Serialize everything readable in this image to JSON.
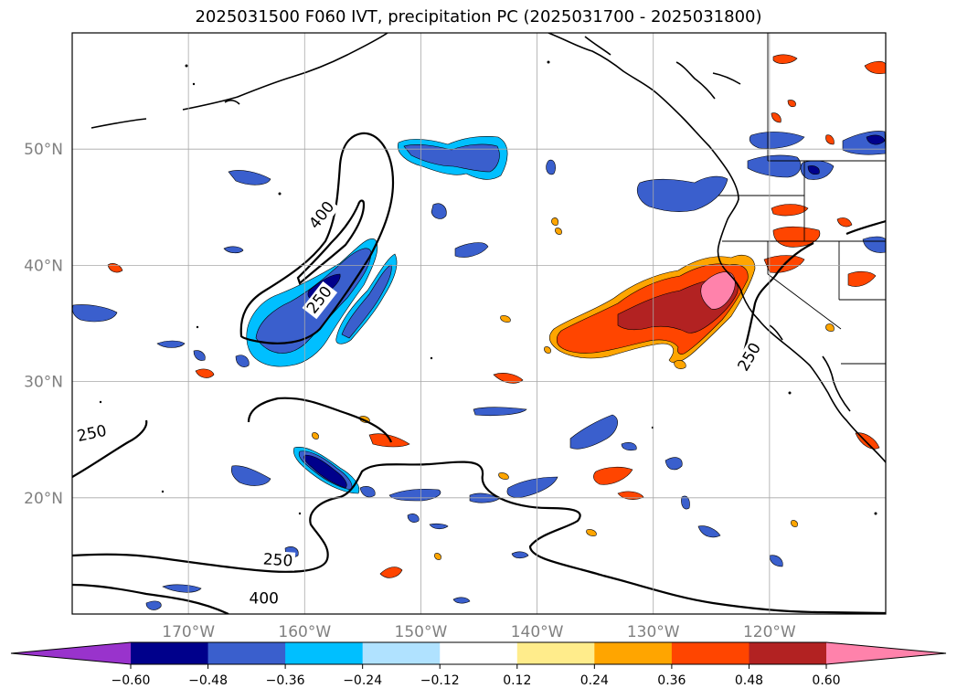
{
  "title": "2025031500 F060 IVT, precipitation PC (2025031700 - 2025031800)",
  "map": {
    "lon_range": [
      -180,
      -110
    ],
    "lat_range": [
      10,
      60
    ],
    "lat_ticks": [
      {
        "value": 50,
        "label": "50°N"
      },
      {
        "value": 40,
        "label": "40°N"
      },
      {
        "value": 30,
        "label": "30°N"
      },
      {
        "value": 20,
        "label": "20°N"
      }
    ],
    "lon_ticks": [
      {
        "value": -170,
        "label": "170°W"
      },
      {
        "value": -160,
        "label": "160°W"
      },
      {
        "value": -150,
        "label": "150°W"
      },
      {
        "value": -140,
        "label": "140°W"
      },
      {
        "value": -130,
        "label": "130°W"
      },
      {
        "value": -120,
        "label": "120°W"
      }
    ],
    "grid": true,
    "contour_labels": [
      {
        "text": "400",
        "lon": -158.5,
        "lat": 44.3,
        "rotate": -52
      },
      {
        "text": "250",
        "lon": -158.7,
        "lat": 37.0,
        "rotate": -52
      },
      {
        "text": "250",
        "lon": -178.3,
        "lat": 25.5,
        "rotate": -12
      },
      {
        "text": "250",
        "lon": -162.3,
        "lat": 14.6,
        "rotate": 4
      },
      {
        "text": "400",
        "lon": -163.5,
        "lat": 11.3,
        "rotate": 0
      },
      {
        "text": "250",
        "lon": -121.7,
        "lat": 32.1,
        "rotate": -60
      }
    ]
  },
  "colorbar": {
    "colors": [
      "#9933cc",
      "#00008b",
      "#3a5fcd",
      "#00bfff",
      "#b0e2ff",
      "#ffffff",
      "#ffec8b",
      "#ffa500",
      "#ff4500",
      "#b22222",
      "#ff82ab"
    ],
    "labels": [
      "−0.60",
      "−0.48",
      "−0.36",
      "−0.24",
      "−0.12",
      "0.12",
      "0.24",
      "0.36",
      "0.48",
      "0.60"
    ]
  }
}
